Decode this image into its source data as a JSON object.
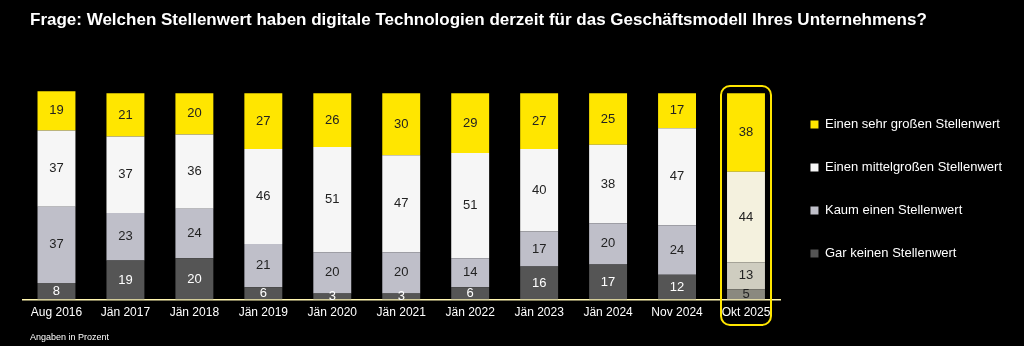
{
  "chart_data": {
    "type": "bar",
    "title": "Frage: Welchen Stellenwert haben digitale Technologien derzeit für das Geschäftsmodell Ihres Unternehmens?",
    "categories": [
      "Aug 2016",
      "Jän 2017",
      "Jän 2018",
      "Jän 2019",
      "Jän 2020",
      "Jän 2021",
      "Jän 2022",
      "Jän 2023",
      "Jän 2024",
      "Nov 2024",
      "Okt 2025"
    ],
    "stacked": true,
    "data_labels": true,
    "legend": "right",
    "series": [
      {
        "name": "Gar keinen Stellenwert",
        "color": "#555555",
        "colors": [
          "#555555",
          "#555555",
          "#555555",
          "#555555",
          "#555555",
          "#555555",
          "#555555",
          "#555555",
          "#555555",
          "#555555",
          "#8a897f"
        ],
        "values": [
          8,
          19,
          20,
          6,
          3,
          3,
          6,
          16,
          17,
          12,
          5
        ]
      },
      {
        "name": "Kaum einen Stellenwert",
        "color": "#bfbfc9",
        "colors": [
          "#bfbfc9",
          "#bfbfc9",
          "#bfbfc9",
          "#bfbfc9",
          "#bfbfc9",
          "#bfbfc9",
          "#bfbfc9",
          "#bfbfc9",
          "#bfbfc9",
          "#bfbfc9",
          "#cfcdc0"
        ],
        "values": [
          37,
          23,
          24,
          21,
          20,
          20,
          14,
          17,
          20,
          24,
          13
        ]
      },
      {
        "name": "Einen mittelgroßen Stellenwert",
        "color": "#f6f6f6",
        "colors": [
          "#f6f6f6",
          "#f6f6f6",
          "#f6f6f6",
          "#f6f6f6",
          "#f6f6f6",
          "#f6f6f6",
          "#f6f6f6",
          "#f6f6f6",
          "#f6f6f6",
          "#f6f6f6",
          "#f4f1de"
        ],
        "values": [
          37,
          37,
          36,
          46,
          51,
          47,
          51,
          40,
          38,
          47,
          44
        ]
      },
      {
        "name": "Einen sehr großen Stellenwert",
        "color": "#ffe600",
        "colors": [
          "#ffe600",
          "#ffe600",
          "#ffe600",
          "#ffe600",
          "#ffe600",
          "#ffe600",
          "#ffe600",
          "#ffe600",
          "#ffe600",
          "#ffe600",
          "#ffe600"
        ],
        "values": [
          19,
          21,
          20,
          27,
          26,
          30,
          29,
          27,
          25,
          17,
          38
        ]
      }
    ],
    "annotations": [
      "Angaben in Prozent"
    ]
  }
}
